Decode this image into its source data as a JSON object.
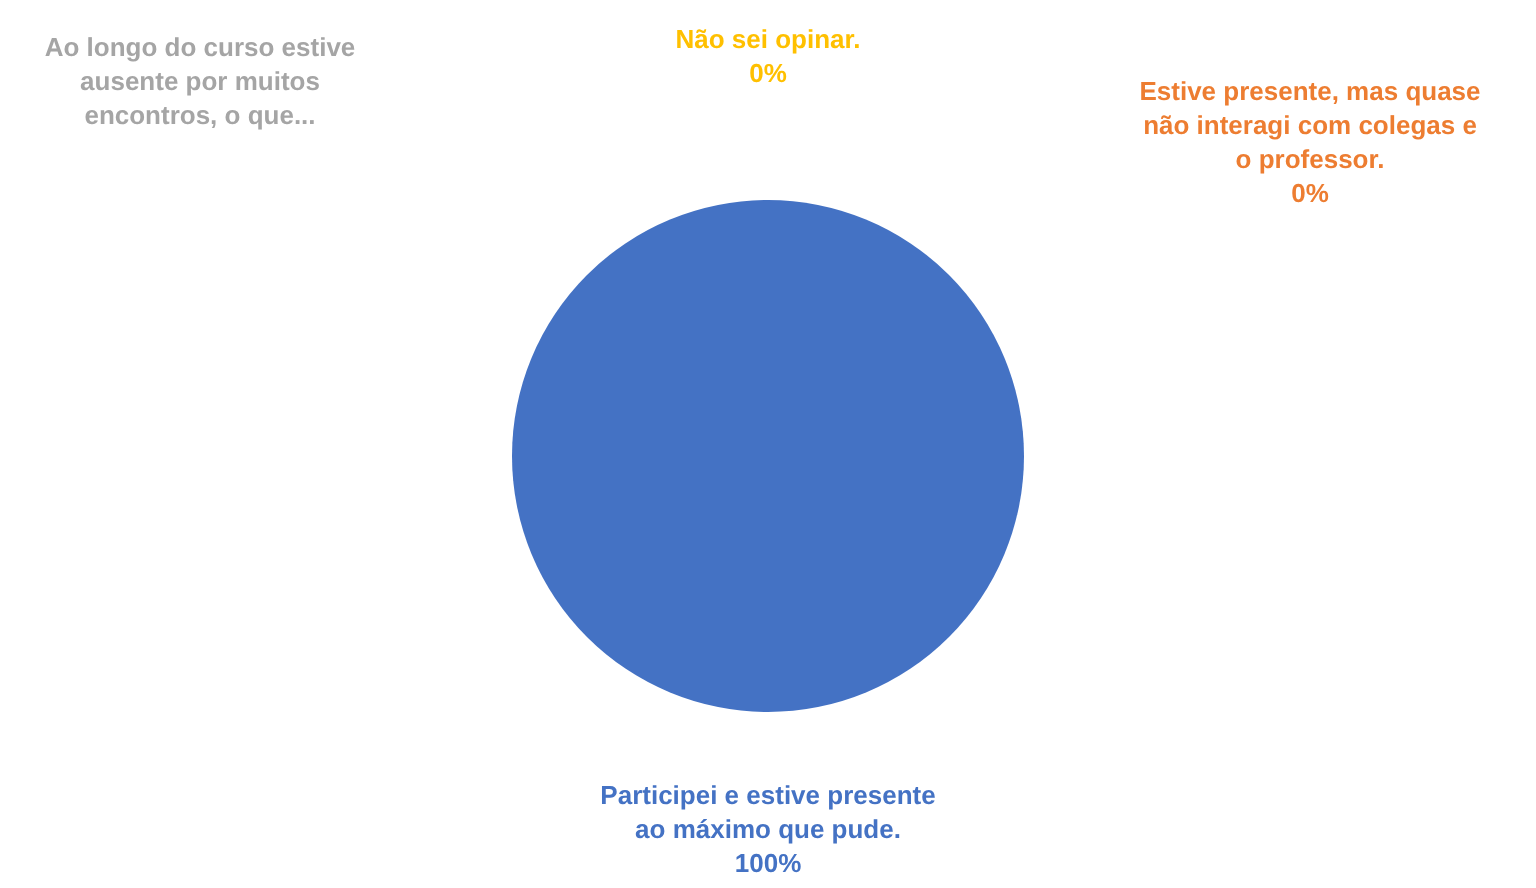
{
  "chart_data": {
    "type": "pie",
    "categories": [
      "Participei e estive presente ao máximo que pude.",
      "Estive presente, mas quase não interagi com colegas e o professor.",
      "Ao longo do curso estive ausente por muitos encontros, o que...",
      "Não sei opinar."
    ],
    "values": [
      100,
      0,
      0,
      0
    ],
    "colors": [
      "#4472c4",
      "#ed7d31",
      "#a5a5a5",
      "#ffc000"
    ],
    "value_labels": [
      "100%",
      "0%",
      null,
      "0%"
    ]
  }
}
